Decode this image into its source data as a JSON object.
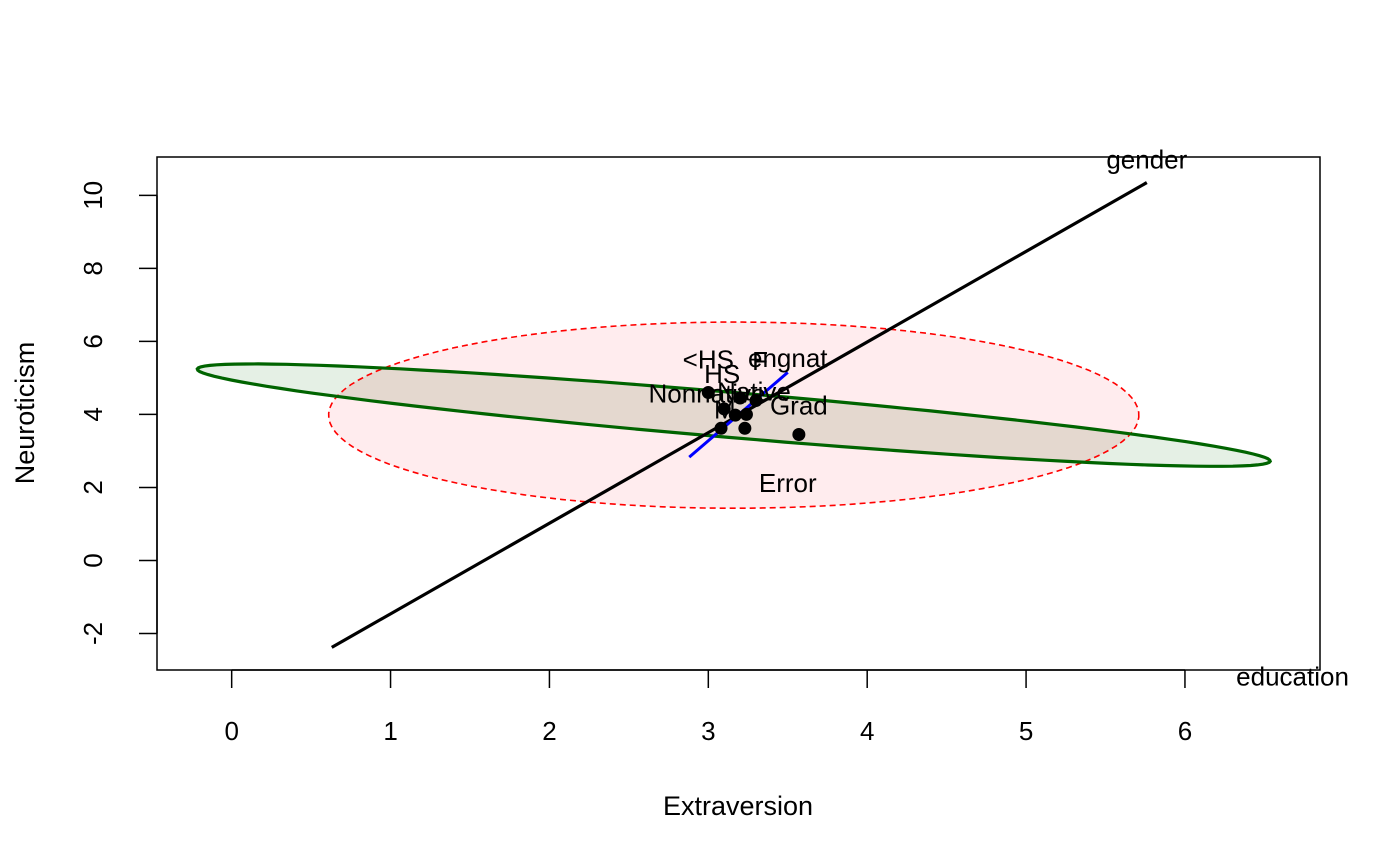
{
  "chart_data": {
    "type": "scatter",
    "title": "",
    "xlabel": "Extraversion",
    "ylabel": "Neuroticism",
    "xlim": [
      -0.47,
      6.85
    ],
    "ylim": [
      -3.0,
      11.05
    ],
    "xticks": [
      0,
      1,
      2,
      3,
      4,
      5,
      6
    ],
    "yticks": [
      -2,
      0,
      2,
      4,
      6,
      8,
      10
    ],
    "grid": false,
    "legend": "none",
    "points": [
      {
        "name": "<HS",
        "x": 3.0,
        "y": 4.6,
        "dx": 0,
        "dy": -24
      },
      {
        "name": "HS",
        "x": 3.1,
        "y": 4.15,
        "dx": -2,
        "dy": -26
      },
      {
        "name": "F",
        "x": 3.2,
        "y": 4.45,
        "dx": 20,
        "dy": -28
      },
      {
        "name": "Nonnative",
        "x": 3.08,
        "y": 3.62,
        "dx": -14,
        "dy": -26
      },
      {
        "name": "Native",
        "x": 3.3,
        "y": 4.38,
        "dx": -2,
        "dy": 0
      },
      {
        "name": "M",
        "x": 3.23,
        "y": 3.62,
        "dx": -20,
        "dy": -10
      },
      {
        "name": "Grad",
        "x": 3.57,
        "y": 3.45,
        "dx": 0,
        "dy": -20
      },
      {
        "name": "",
        "x": 3.17,
        "y": 3.98
      },
      {
        "name": "",
        "x": 3.24,
        "y": 4.0
      }
    ],
    "hypothesis_terms": [
      {
        "name": "gender",
        "color": "#000000",
        "shape": "line",
        "from": [
          0.63,
          -2.38
        ],
        "to": [
          5.76,
          10.35
        ],
        "label_at": [
          5.76,
          10.35
        ]
      },
      {
        "name": "education",
        "color": "#006400",
        "shape": "ellipse",
        "center": [
          3.16,
          3.98
        ],
        "rx": 3.61,
        "ry": 0.58,
        "angle_deg": -21.0,
        "fill": "#e5f0e5",
        "label_at": [
          6.35,
          -3.1
        ]
      },
      {
        "name": "engnat",
        "color": "#0000ff",
        "shape": "line",
        "from": [
          2.88,
          2.83
        ],
        "to": [
          3.5,
          5.15
        ],
        "label_at": [
          3.5,
          5.25
        ]
      }
    ],
    "error": {
      "name": "Error",
      "color": "#ff0000",
      "center": [
        3.16,
        3.98
      ],
      "rx": 2.55,
      "ry": 2.55,
      "angle_deg": -1.2,
      "fill": "#ffe5e8",
      "label_at": [
        3.5,
        1.55
      ]
    }
  }
}
